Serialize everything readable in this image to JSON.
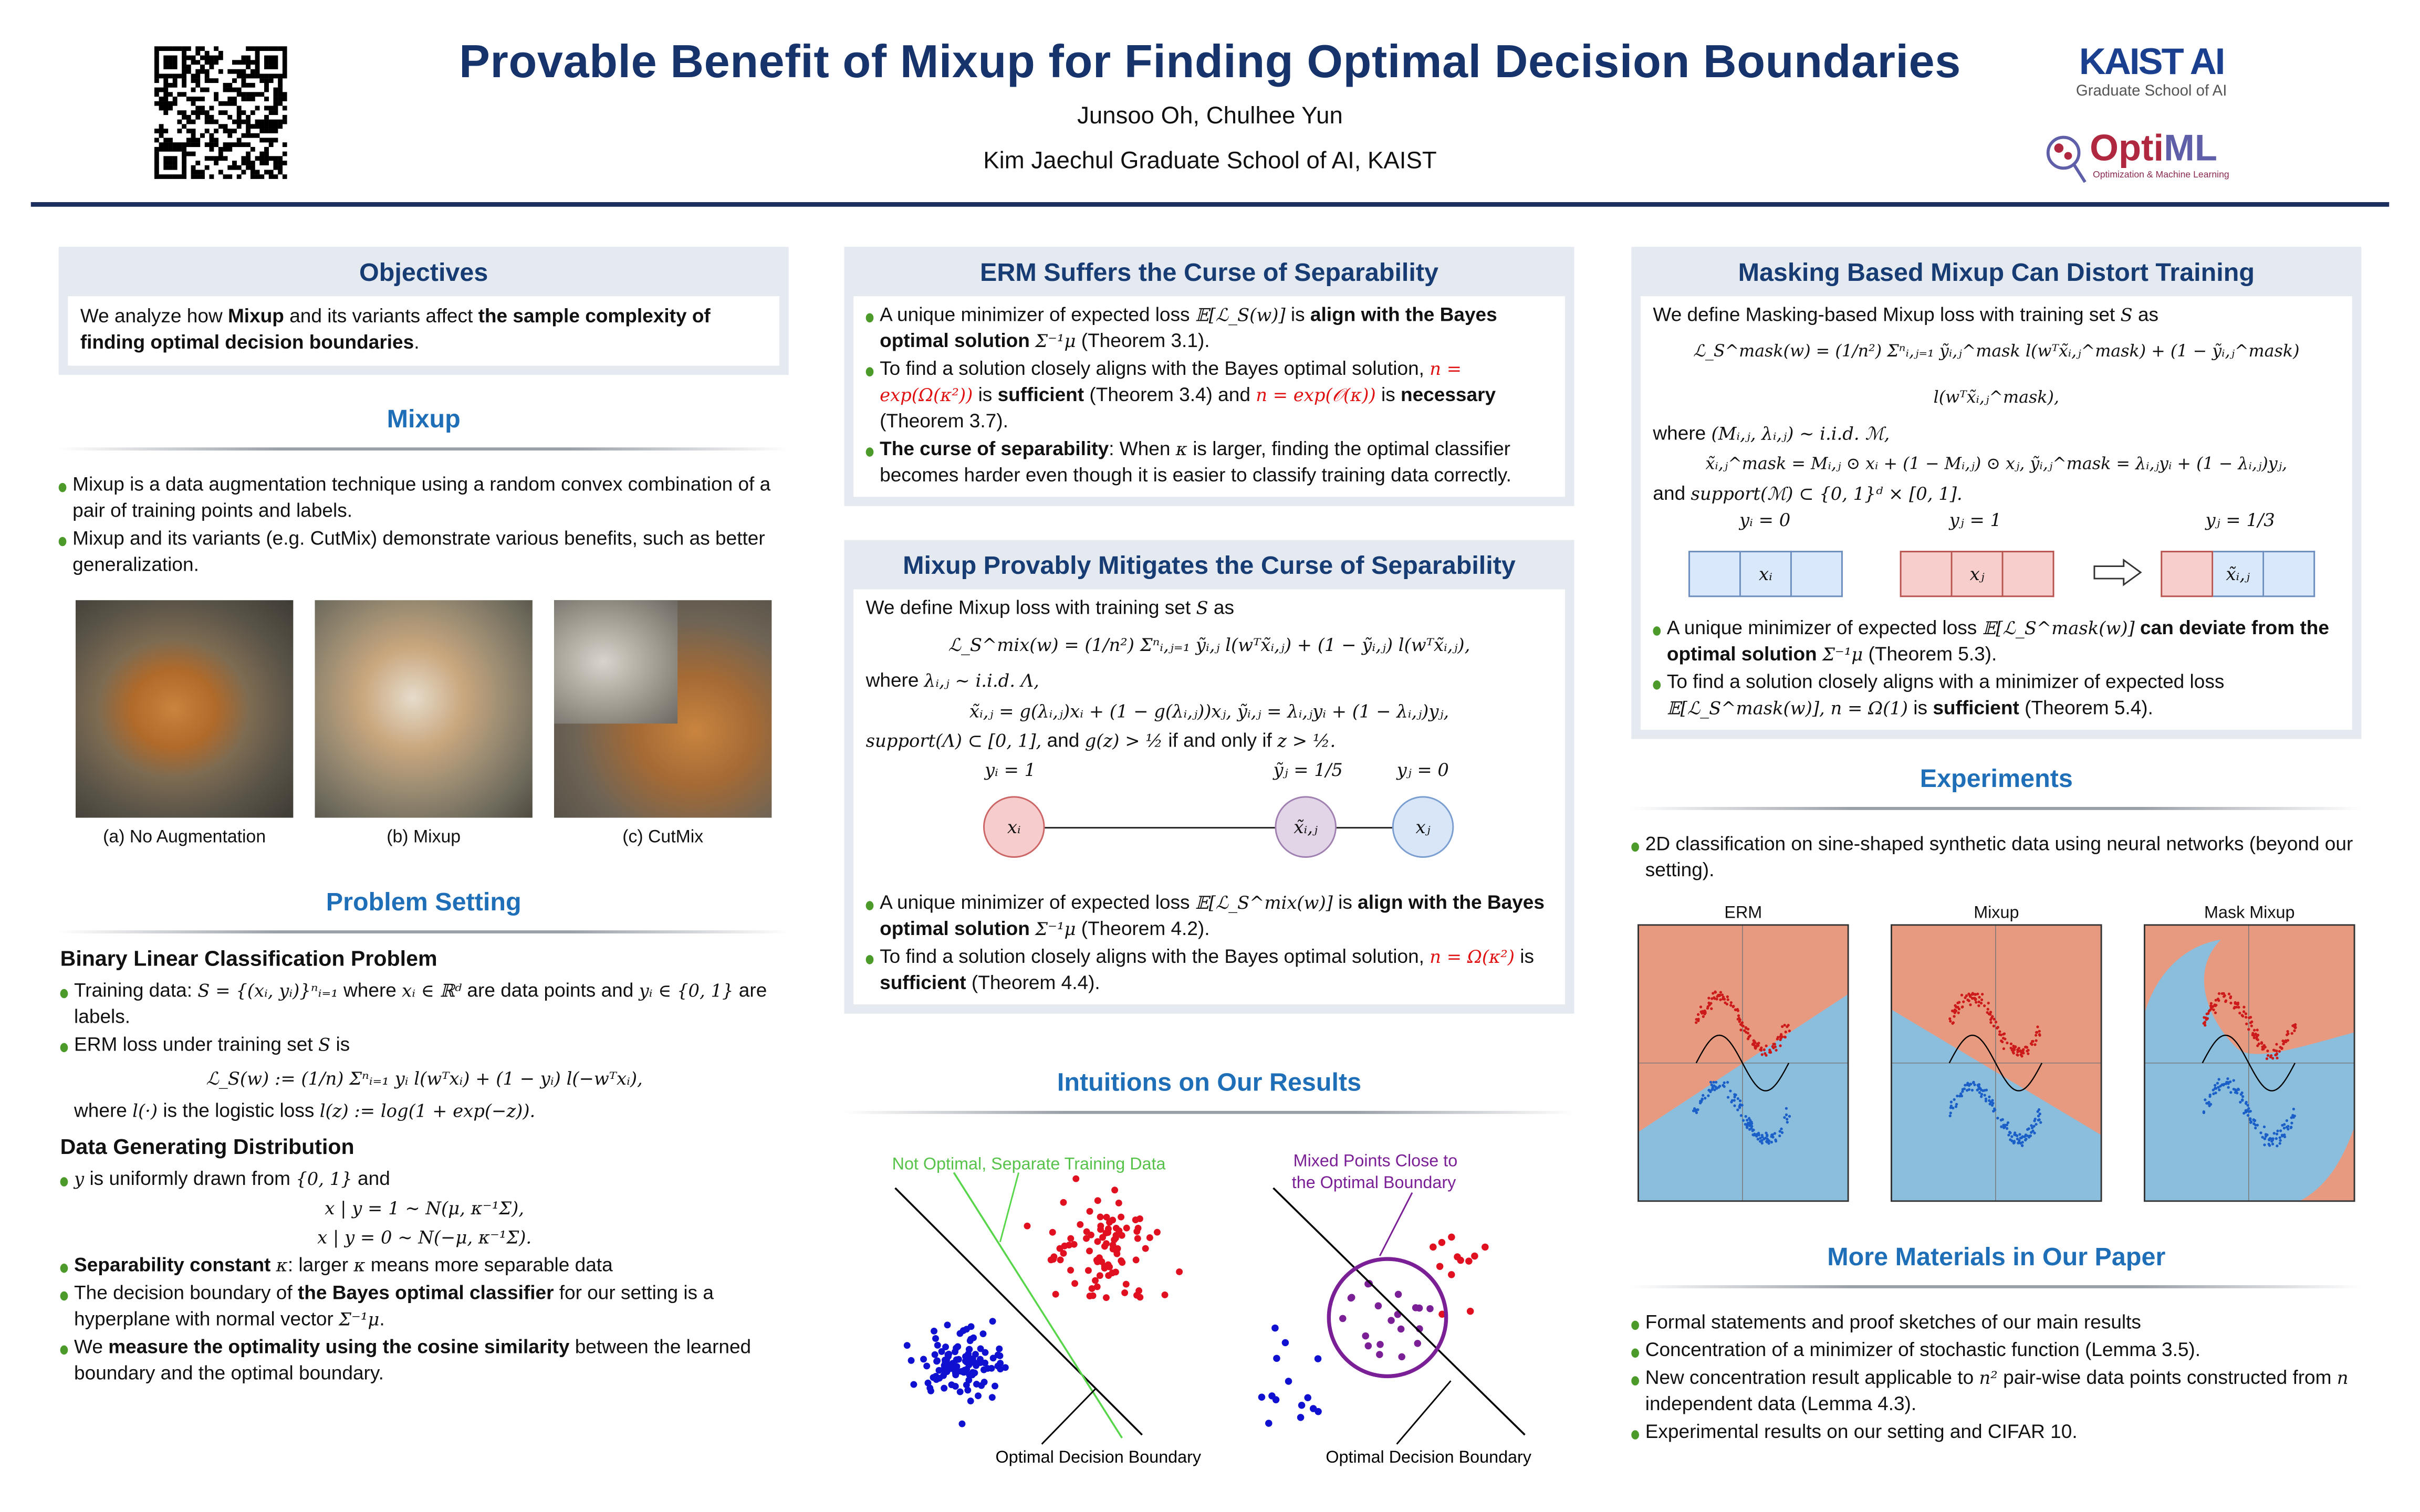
{
  "header": {
    "title": "Provable Benefit of Mixup for Finding Optimal Decision Boundaries",
    "authors": "Junsoo Oh, Chulhee Yun",
    "affiliation": "Kim Jaechul Graduate School of AI, KAIST",
    "logo_kaist": "KAIST AI",
    "logo_kaist_sub": "Graduate School of AI",
    "logo_optiml_a": "Opti",
    "logo_optiml_b": "ML",
    "logo_optiml_sub": "Optimization & Machine Learning"
  },
  "objectives": {
    "title": "Objectives",
    "text": [
      {
        "t": "We analyze how "
      },
      {
        "t": "Mixup",
        "s": "b"
      },
      {
        "t": " and its variants affect "
      },
      {
        "t": "the sample complexity of finding optimal decision boundaries",
        "s": "b"
      },
      {
        "t": "."
      }
    ]
  },
  "mixup": {
    "title": "Mixup",
    "bullets": [
      [
        {
          "t": "Mixup is a data augmentation technique using a random convex combination of a pair of training points and labels."
        }
      ],
      [
        {
          "t": "Mixup and its variants (e.g. CutMix) demonstrate various benefits, such as better generalization."
        }
      ]
    ],
    "captions": [
      "(a) No Augmentation",
      "(b) Mixup",
      "(c) CutMix"
    ]
  },
  "problem": {
    "title": "Problem Setting",
    "sub1": "Binary Linear Classification Problem",
    "bullets1": [
      [
        {
          "t": "Training data: "
        },
        {
          "t": "S = {(xᵢ, yᵢ)}ⁿᵢ₌₁",
          "s": "m"
        },
        {
          "t": " where "
        },
        {
          "t": "xᵢ ∈ ℝᵈ",
          "s": "m"
        },
        {
          "t": " are data points and "
        },
        {
          "t": "yᵢ ∈ {0, 1}",
          "s": "m"
        },
        {
          "t": " are labels."
        }
      ],
      [
        {
          "t": "ERM loss under training set "
        },
        {
          "t": "S",
          "s": "m"
        },
        {
          "t": " is"
        }
      ]
    ],
    "erm_formula": "ℒ_S(w) := (1/n) Σⁿᵢ₌₁ yᵢ l(wᵀxᵢ) + (1 − yᵢ) l(−wᵀxᵢ),",
    "where_logistic": [
      {
        "t": "where "
      },
      {
        "t": "l(·)",
        "s": "m"
      },
      {
        "t": " is the logistic loss "
      },
      {
        "t": "l(z) := log(1 + exp(−z)).",
        "s": "m"
      }
    ],
    "sub2": "Data Generating Distribution",
    "bullet_y": [
      {
        "t": "y",
        "s": "m"
      },
      {
        "t": " is uniformly drawn from "
      },
      {
        "t": "{0, 1}",
        "s": "m"
      },
      {
        "t": " and"
      }
    ],
    "dist1": "x | y = 1 ∼ N(μ, κ⁻¹Σ),",
    "dist0": "x | y = 0 ∼ N(−μ, κ⁻¹Σ).",
    "bullets2": [
      [
        {
          "t": "Separability constant ",
          "s": "b"
        },
        {
          "t": "κ",
          "s": "m"
        },
        {
          "t": ": larger "
        },
        {
          "t": "κ",
          "s": "m"
        },
        {
          "t": " means more separable data"
        }
      ],
      [
        {
          "t": "The decision boundary of "
        },
        {
          "t": "the Bayes optimal classifier",
          "s": "b"
        },
        {
          "t": " for our setting is a hyperplane with normal vector "
        },
        {
          "t": "Σ⁻¹μ",
          "s": "m"
        },
        {
          "t": "."
        }
      ],
      [
        {
          "t": "We "
        },
        {
          "t": "measure the optimality using the cosine similarity",
          "s": "b"
        },
        {
          "t": " between the learned boundary and the optimal boundary."
        }
      ]
    ]
  },
  "erm": {
    "title": "ERM Suffers the Curse of Separability",
    "bullets": [
      [
        {
          "t": "A unique minimizer of expected loss "
        },
        {
          "t": "𝔼[ℒ_S(w)]",
          "s": "m"
        },
        {
          "t": " is "
        },
        {
          "t": "align with the Bayes optimal solution ",
          "s": "b"
        },
        {
          "t": "Σ⁻¹μ",
          "s": "m"
        },
        {
          "t": " (Theorem 3.1)."
        }
      ],
      [
        {
          "t": "To find a solution closely aligns with the Bayes optimal solution, "
        },
        {
          "t": "n = exp(Ω(κ²))",
          "s": "r"
        },
        {
          "t": " is "
        },
        {
          "t": "sufficient",
          "s": "b"
        },
        {
          "t": " (Theorem 3.4) and "
        },
        {
          "t": "n = exp(𝒪(κ))",
          "s": "r"
        },
        {
          "t": " is "
        },
        {
          "t": "necessary",
          "s": "b"
        },
        {
          "t": " (Theorem 3.7)."
        }
      ],
      [
        {
          "t": "The curse of separability",
          "s": "b"
        },
        {
          "t": ": When "
        },
        {
          "t": "κ",
          "s": "m"
        },
        {
          "t": " is larger, finding the optimal classifier becomes harder even though it is easier to classify training data correctly."
        }
      ]
    ]
  },
  "mixup_mitigates": {
    "title": "Mixup Provably Mitigates the Curse of Separability",
    "intro": [
      {
        "t": "We define Mixup loss with training set "
      },
      {
        "t": "S",
        "s": "m"
      },
      {
        "t": " as"
      }
    ],
    "formula": "ℒ_S^mix(w) = (1/n²) Σⁿᵢ,ⱼ₌₁ ỹᵢ,ⱼ l(wᵀx̃ᵢ,ⱼ) + (1 − ỹᵢ,ⱼ) l(wᵀx̃ᵢ,ⱼ),",
    "where": [
      {
        "t": "where "
      },
      {
        "t": "λᵢ,ⱼ ~ i.i.d. Λ,",
        "s": "m"
      }
    ],
    "formula2": "x̃ᵢ,ⱼ = g(λᵢ,ⱼ)xᵢ + (1 − g(λᵢ,ⱼ))xⱼ,  ỹᵢ,ⱼ = λᵢ,ⱼyᵢ + (1 − λᵢ,ⱼ)yⱼ,",
    "support": [
      {
        "t": "support(Λ) ⊂ [0, 1],",
        "s": "m"
      },
      {
        "t": " and "
      },
      {
        "t": "g(z) > ½",
        "s": "m"
      },
      {
        "t": " if and only if "
      },
      {
        "t": "z > ½.",
        "s": "m"
      }
    ],
    "diagram": {
      "label_i": "yᵢ = 1",
      "label_mix": "ỹⱼ = 1/5",
      "label_j": "yⱼ = 0",
      "node_i": "xᵢ",
      "node_mix": "x̃ᵢ,ⱼ",
      "node_j": "xⱼ"
    },
    "bullets": [
      [
        {
          "t": "A unique minimizer of expected loss "
        },
        {
          "t": "𝔼[ℒ_S^mix(w)]",
          "s": "m"
        },
        {
          "t": " is "
        },
        {
          "t": "align with the Bayes optimal solution ",
          "s": "b"
        },
        {
          "t": "Σ⁻¹μ",
          "s": "m"
        },
        {
          "t": " (Theorem 4.2)."
        }
      ],
      [
        {
          "t": "To find a solution closely aligns with the Bayes optimal solution, "
        },
        {
          "t": "n = Ω(κ²)",
          "s": "r"
        },
        {
          "t": " is "
        },
        {
          "t": "sufficient",
          "s": "b"
        },
        {
          "t": " (Theorem 4.4)."
        }
      ]
    ]
  },
  "intuitions": {
    "title": "Intuitions on Our Results",
    "left_label": "Not Optimal, Separate Training Data",
    "left_bottom": "Optimal Decision Boundary",
    "right_label_1": "Mixed Points Close to",
    "right_label_2": "the Optimal Boundary",
    "right_bottom": "Optimal Decision Boundary",
    "colors": {
      "class1": "#e01020",
      "class0": "#1010d0",
      "mixed": "#7a1f95",
      "suboptimal": "#57d64a"
    }
  },
  "masking": {
    "title": "Masking Based Mixup Can Distort Training",
    "intro": [
      {
        "t": "We define Masking-based Mixup loss with training set "
      },
      {
        "t": "S",
        "s": "m"
      },
      {
        "t": " as"
      }
    ],
    "formula": "ℒ_S^mask(w) = (1/n²) Σⁿᵢ,ⱼ₌₁ ỹᵢ,ⱼ^mask l(wᵀx̃ᵢ,ⱼ^mask) + (1 − ỹᵢ,ⱼ^mask) l(wᵀx̃ᵢ,ⱼ^mask),",
    "where": [
      {
        "t": "where "
      },
      {
        "t": "(Mᵢ,ⱼ, λᵢ,ⱼ) ~ i.i.d. ℳ,",
        "s": "m"
      }
    ],
    "formula2": "x̃ᵢ,ⱼ^mask = Mᵢ,ⱼ ⊙ xᵢ + (1 − Mᵢ,ⱼ) ⊙ xⱼ,  ỹᵢ,ⱼ^mask = λᵢ,ⱼyᵢ + (1 − λᵢ,ⱼ)yⱼ,",
    "support": [
      {
        "t": "and "
      },
      {
        "t": "support(ℳ) ⊂ {0, 1}ᵈ × [0, 1].",
        "s": "m"
      }
    ],
    "diagram": {
      "label_i": "yᵢ = 0",
      "label_j": "yⱼ = 1",
      "label_mix": "yⱼ = 1/3",
      "cell_i": "xᵢ",
      "cell_j": "xⱼ",
      "cell_mix": "x̃ᵢ,ⱼ"
    },
    "bullets": [
      [
        {
          "t": "A unique minimizer of expected loss "
        },
        {
          "t": "𝔼[ℒ_S^mask(w)]",
          "s": "m"
        },
        {
          "t": " "
        },
        {
          "t": "can deviate from the optimal solution ",
          "s": "b"
        },
        {
          "t": "Σ⁻¹μ",
          "s": "m"
        },
        {
          "t": " (Theorem 5.3)."
        }
      ],
      [
        {
          "t": "To find a solution closely aligns with a minimizer of expected loss "
        },
        {
          "t": "𝔼[ℒ_S^mask(w)], n = Ω(1)",
          "s": "m"
        },
        {
          "t": " is "
        },
        {
          "t": "sufficient",
          "s": "b"
        },
        {
          "t": " (Theorem 5.4)."
        }
      ]
    ]
  },
  "experiments": {
    "title": "Experiments",
    "bullets": [
      [
        {
          "t": "2D classification on sine-shaped synthetic data using neural networks (beyond our setting)."
        }
      ]
    ],
    "plots": [
      "ERM",
      "Mixup",
      "Mask Mixup"
    ],
    "colors": {
      "region1": "#e89a80",
      "region0": "#8bbddc",
      "class1": "#cc1a1a",
      "class0": "#1a5fc8"
    }
  },
  "materials": {
    "title": "More Materials in Our Paper",
    "bullets": [
      [
        {
          "t": "Formal statements and proof sketches of our main results"
        }
      ],
      [
        {
          "t": "Concentration of a minimizer of stochastic function (Lemma 3.5)."
        }
      ],
      [
        {
          "t": "New concentration result applicable to "
        },
        {
          "t": "n²",
          "s": "m"
        },
        {
          "t": " pair-wise data points constructed from "
        },
        {
          "t": "n",
          "s": "m"
        },
        {
          "t": " independent data (Lemma 4.3)."
        }
      ],
      [
        {
          "t": "Experimental results on our setting and CIFAR 10."
        }
      ]
    ]
  }
}
